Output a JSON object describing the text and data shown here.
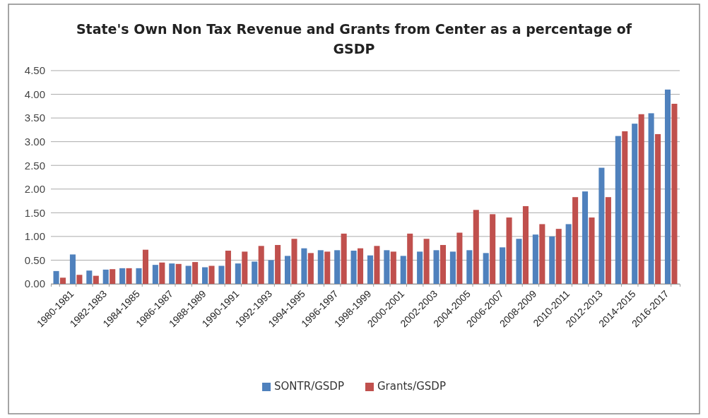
{
  "chart_data": {
    "type": "bar",
    "title": "State's Own Non Tax Revenue and Grants from Center as a percentage of GSDP",
    "categories": [
      "1980-1981",
      null,
      "1982-1983",
      null,
      "1984-1985",
      null,
      "1986-1987",
      null,
      "1988-1989",
      null,
      "1990-1991",
      null,
      "1992-1993",
      null,
      "1994-1995",
      null,
      "1996-1997",
      null,
      "1998-1999",
      null,
      "2000-2001",
      null,
      "2002-2003",
      null,
      "2004-2005",
      null,
      "2006-2007",
      null,
      "2008-2009",
      null,
      "2010-2011",
      null,
      "2012-2013",
      null,
      "2014-2015",
      null,
      "2016-2017",
      null
    ],
    "series": [
      {
        "name": "SONTR/GSDP",
        "color": "#4f81bd",
        "values": [
          0.27,
          0.62,
          0.28,
          0.3,
          0.33,
          0.33,
          0.4,
          0.43,
          0.38,
          0.35,
          0.38,
          0.43,
          0.47,
          0.5,
          0.59,
          0.75,
          0.71,
          0.71,
          0.7,
          0.6,
          0.71,
          0.59,
          0.68,
          0.71,
          0.68,
          0.71,
          0.65,
          0.77,
          0.95,
          1.04,
          1.0,
          1.26,
          1.95,
          2.45,
          3.12,
          3.38,
          3.6,
          4.1
        ]
      },
      {
        "name": "Grants/GSDP",
        "color": "#c0504d",
        "values": [
          0.13,
          0.19,
          0.17,
          0.31,
          0.33,
          0.72,
          0.45,
          0.42,
          0.46,
          0.38,
          0.7,
          0.68,
          0.8,
          0.82,
          0.95,
          0.65,
          0.68,
          1.06,
          0.75,
          0.8,
          0.68,
          1.06,
          0.95,
          0.82,
          1.08,
          1.56,
          1.47,
          1.4,
          1.64,
          1.26,
          1.16,
          1.83,
          1.4,
          1.83,
          3.22,
          3.58,
          3.16,
          3.8
        ]
      }
    ],
    "ylim": [
      0,
      4.5
    ],
    "yticks": [
      {
        "value": 0,
        "label": "0.00"
      },
      {
        "value": 0.5,
        "label": "0.50"
      },
      {
        "value": 1,
        "label": "1.00"
      },
      {
        "value": 1.5,
        "label": "1.50"
      },
      {
        "value": 2,
        "label": "2.00"
      },
      {
        "value": 2.5,
        "label": "2.50"
      },
      {
        "value": 3,
        "label": "3.00"
      },
      {
        "value": 3.5,
        "label": "3.50"
      },
      {
        "value": 4,
        "label": "4.00"
      },
      {
        "value": 4.5,
        "label": "4.50"
      }
    ],
    "grid": "y",
    "legend": "bottom"
  }
}
